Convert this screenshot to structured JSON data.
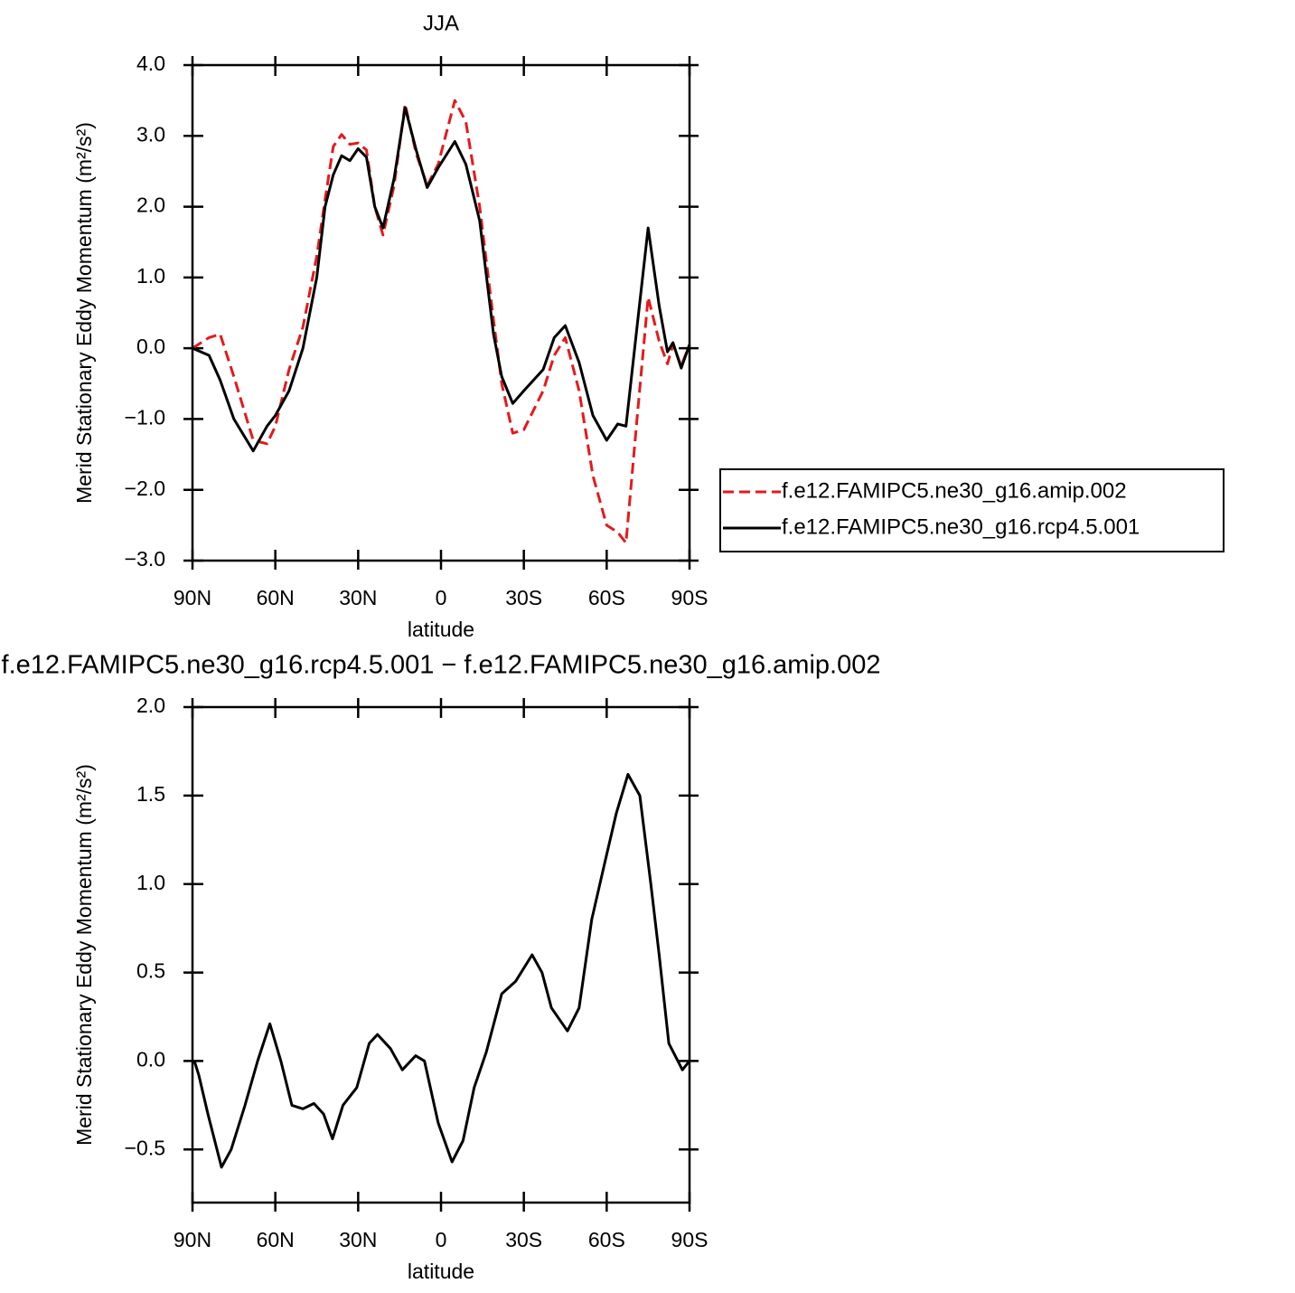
{
  "chart_data": [
    {
      "type": "line",
      "title": "JJA",
      "xlabel": "latitude",
      "ylabel": "Merid Stationary Eddy Momentum (m²/s²)",
      "x": [
        90,
        84,
        80,
        75,
        68,
        63,
        60,
        55,
        50,
        45,
        42,
        39,
        36,
        33,
        30,
        27,
        24,
        21,
        17,
        13,
        9,
        5,
        1,
        -5,
        -9,
        -14,
        -19,
        -22,
        -26,
        -30,
        -37,
        -41,
        -45,
        -50,
        -55,
        -60,
        -64,
        -67,
        -71,
        -75,
        -79,
        -82,
        -84,
        -87,
        -90
      ],
      "series": [
        {
          "name": "f.e12.FAMIPC5.ne30_g16.amip.002",
          "color": "#e41a1c",
          "dash": "dashed",
          "values": [
            0,
            0.15,
            0.2,
            -0.4,
            -1.3,
            -1.35,
            -1.1,
            -0.3,
            0.3,
            1.3,
            2.1,
            2.85,
            3.02,
            2.88,
            2.9,
            2.8,
            2.0,
            1.6,
            2.3,
            3.45,
            2.75,
            2.3,
            2.6,
            3.5,
            3.2,
            2.0,
            0.4,
            -0.5,
            -1.2,
            -1.15,
            -0.6,
            -0.1,
            0.15,
            -0.6,
            -1.8,
            -2.5,
            -2.6,
            -2.75,
            -1.0,
            0.72,
            0.1,
            -0.22,
            0.05,
            -0.25,
            0.05
          ]
        },
        {
          "name": "f.e12.FAMIPC5.ne30_g16.rcp4.5.001",
          "color": "#000000",
          "dash": "solid",
          "values": [
            0,
            -0.1,
            -0.45,
            -1.0,
            -1.45,
            -1.1,
            -0.95,
            -0.6,
            0,
            1.0,
            2.0,
            2.45,
            2.72,
            2.65,
            2.82,
            2.7,
            2.0,
            1.7,
            2.4,
            3.4,
            2.8,
            2.27,
            2.55,
            2.92,
            2.6,
            1.8,
            0.2,
            -0.4,
            -0.78,
            -0.6,
            -0.3,
            0.15,
            0.32,
            -0.2,
            -0.95,
            -1.3,
            -1.07,
            -1.1,
            0.3,
            1.7,
            0.6,
            -0.05,
            0.08,
            -0.28,
            0.05
          ]
        }
      ],
      "xlim": [
        90,
        -90
      ],
      "xticks": [
        {
          "value": 90,
          "label": "90N"
        },
        {
          "value": 60,
          "label": "60N"
        },
        {
          "value": 30,
          "label": "30N"
        },
        0,
        {
          "value": -30,
          "label": "30S"
        },
        {
          "value": -60,
          "label": "60S"
        },
        {
          "value": -90,
          "label": "90S"
        }
      ],
      "ylim": [
        -3,
        4
      ],
      "yticks": [
        {
          "value": 4,
          "label": "4.0"
        },
        {
          "value": 3,
          "label": "3.0"
        },
        {
          "value": 2,
          "label": "2.0"
        },
        {
          "value": 1,
          "label": "1.0"
        },
        {
          "value": 0,
          "label": "0.0"
        },
        {
          "value": -1,
          "label": "−1.0"
        },
        {
          "value": -2,
          "label": "−2.0"
        },
        {
          "value": -3,
          "label": "−3.0"
        }
      ],
      "legend": "right"
    },
    {
      "type": "line",
      "title": "f.e12.FAMIPC5.ne30_g16.rcp4.5.001 − f.e12.FAMIPC5.ne30_g16.amip.002",
      "xlabel": "latitude",
      "ylabel": "Merid Stationary Eddy Momentum (m²/s²)",
      "x": [
        89.3,
        87.7,
        84.4,
        79.5,
        76,
        71,
        66.4,
        62,
        58,
        54,
        50,
        46,
        42.5,
        39.3,
        35.5,
        30.5,
        26,
        23,
        18.3,
        14,
        9.2,
        6,
        1,
        -4,
        -8,
        -12,
        -16.4,
        -22,
        -27,
        -33,
        -36.6,
        -40,
        -45.8,
        -50,
        -54.6,
        -59,
        -63.5,
        -67.7,
        -72,
        -76,
        -79,
        -82.5,
        -87.4,
        -90
      ],
      "series": [
        {
          "color": "#000000",
          "dash": "solid",
          "values": [
            0.0,
            -0.08,
            -0.3,
            -0.6,
            -0.5,
            -0.25,
            0.0,
            0.21,
            0.0,
            -0.25,
            -0.27,
            -0.24,
            -0.3,
            -0.44,
            -0.25,
            -0.15,
            0.1,
            0.15,
            0.07,
            -0.05,
            0.03,
            0.0,
            -0.35,
            -0.57,
            -0.45,
            -0.15,
            0.05,
            0.38,
            0.45,
            0.6,
            0.5,
            0.3,
            0.17,
            0.3,
            0.8,
            1.1,
            1.4,
            1.62,
            1.5,
            1.0,
            0.6,
            0.1,
            -0.05,
            0.0
          ]
        }
      ],
      "xlim": [
        90,
        -90
      ],
      "xticks": [
        {
          "value": 90,
          "label": "90N"
        },
        {
          "value": 60,
          "label": "60N"
        },
        {
          "value": 30,
          "label": "30N"
        },
        0,
        {
          "value": -30,
          "label": "30S"
        },
        {
          "value": -60,
          "label": "60S"
        },
        {
          "value": -90,
          "label": "90S"
        }
      ],
      "ylim": [
        -0.8,
        2.0
      ],
      "yticks": [
        {
          "value": 2,
          "label": "2.0"
        },
        {
          "value": 1.5,
          "label": "1.5"
        },
        {
          "value": 1,
          "label": "1.0"
        },
        {
          "value": 0.5,
          "label": "0.5"
        },
        {
          "value": 0,
          "label": "0.0"
        },
        {
          "value": -0.5,
          "label": "−0.5"
        }
      ]
    }
  ]
}
